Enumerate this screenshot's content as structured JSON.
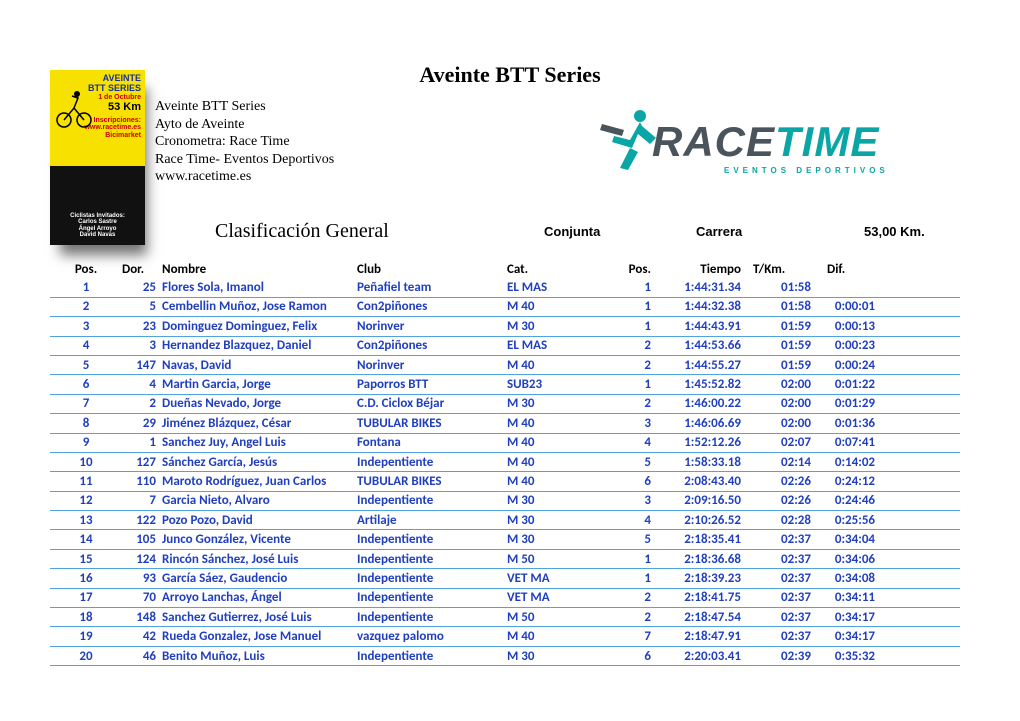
{
  "title": "Aveinte BTT Series",
  "event": {
    "line1": "Aveinte BTT Series",
    "line2": "Ayto de Aveinte",
    "line3": "Cronometra: Race Time",
    "line4": "Race Time- Eventos Deportivos",
    "line5": "www.racetime.es"
  },
  "poster": {
    "l1": "AVEINTE",
    "l2": "BTT SERIES",
    "date": "1 de Octubre",
    "dist": "53 Km",
    "insc": "Inscripciones:",
    "url": "www.racetime.es",
    "shop": "Bicimarket",
    "g1": "Ciclistas Invitados:",
    "g2": "Carlos Sastre",
    "g3": "Ángel Arroyo",
    "g4": "David Navas"
  },
  "logo": {
    "word_a": "RACE",
    "word_b": "TIME",
    "sub": "EVENTOS DEPORTIVOS",
    "color_main": "#4a545c",
    "color_accent": "#0aa6a6"
  },
  "section": {
    "clas": "Clasificación General",
    "conj": "Conjunta",
    "carr": "Carrera",
    "dist": "53,00 Km."
  },
  "columns": {
    "pos": "Pos.",
    "dor": "Dor.",
    "nombre": "Nombre",
    "club": "Club",
    "cat": "Cat.",
    "pos2": "Pos.",
    "tiempo": "Tiempo",
    "tkm": "T/Km.",
    "dif": "Dif."
  },
  "style": {
    "row_color": "#1f3fbf",
    "rule_color": "#4ea3e0",
    "header_color": "#000000",
    "font": "Calibri",
    "font_size": 13
  },
  "rows": [
    {
      "pos": "1",
      "dor": "25",
      "nombre": "Flores Sola, Imanol",
      "club": "Peñafiel team",
      "cat": "EL MAS",
      "pos2": "1",
      "tiempo": "1:44:31.34",
      "tkm": "01:58",
      "dif": ""
    },
    {
      "pos": "2",
      "dor": "5",
      "nombre": "Cembellin Muñoz, Jose Ramon",
      "club": "Con2piñones",
      "cat": "M 40",
      "pos2": "1",
      "tiempo": "1:44:32.38",
      "tkm": "01:58",
      "dif": "0:00:01"
    },
    {
      "pos": "3",
      "dor": "23",
      "nombre": "Dominguez Dominguez, Felix",
      "club": "Norinver",
      "cat": "M 30",
      "pos2": "1",
      "tiempo": "1:44:43.91",
      "tkm": "01:59",
      "dif": "0:00:13"
    },
    {
      "pos": "4",
      "dor": "3",
      "nombre": "Hernandez Blazquez, Daniel",
      "club": "Con2piñones",
      "cat": "EL MAS",
      "pos2": "2",
      "tiempo": "1:44:53.66",
      "tkm": "01:59",
      "dif": "0:00:23"
    },
    {
      "pos": "5",
      "dor": "147",
      "nombre": "Navas, David",
      "club": "Norinver",
      "cat": "M 40",
      "pos2": "2",
      "tiempo": "1:44:55.27",
      "tkm": "01:59",
      "dif": "0:00:24"
    },
    {
      "pos": "6",
      "dor": "4",
      "nombre": "Martin Garcia, Jorge",
      "club": "Paporros BTT",
      "cat": "SUB23",
      "pos2": "1",
      "tiempo": "1:45:52.82",
      "tkm": "02:00",
      "dif": "0:01:22"
    },
    {
      "pos": "7",
      "dor": "2",
      "nombre": "Dueñas Nevado, Jorge",
      "club": "C.D. Ciclox Béjar",
      "cat": "M 30",
      "pos2": "2",
      "tiempo": "1:46:00.22",
      "tkm": "02:00",
      "dif": "0:01:29"
    },
    {
      "pos": "8",
      "dor": "29",
      "nombre": "Jiménez Blázquez, César",
      "club": "TUBULAR BIKES",
      "cat": "M 40",
      "pos2": "3",
      "tiempo": "1:46:06.69",
      "tkm": "02:00",
      "dif": "0:01:36"
    },
    {
      "pos": "9",
      "dor": "1",
      "nombre": "Sanchez Juy, Angel Luis",
      "club": "Fontana",
      "cat": "M 40",
      "pos2": "4",
      "tiempo": "1:52:12.26",
      "tkm": "02:07",
      "dif": "0:07:41"
    },
    {
      "pos": "10",
      "dor": "127",
      "nombre": "Sánchez García, Jesús",
      "club": "Indepentiente",
      "cat": "M 40",
      "pos2": "5",
      "tiempo": "1:58:33.18",
      "tkm": "02:14",
      "dif": "0:14:02"
    },
    {
      "pos": "11",
      "dor": "110",
      "nombre": "Maroto Rodríguez, Juan Carlos",
      "club": "TUBULAR BIKES",
      "cat": "M 40",
      "pos2": "6",
      "tiempo": "2:08:43.40",
      "tkm": "02:26",
      "dif": "0:24:12"
    },
    {
      "pos": "12",
      "dor": "7",
      "nombre": "Garcia Nieto, Alvaro",
      "club": "Indepentiente",
      "cat": "M 30",
      "pos2": "3",
      "tiempo": "2:09:16.50",
      "tkm": "02:26",
      "dif": "0:24:46"
    },
    {
      "pos": "13",
      "dor": "122",
      "nombre": "Pozo Pozo, David",
      "club": "Artilaje",
      "cat": "M 30",
      "pos2": "4",
      "tiempo": "2:10:26.52",
      "tkm": "02:28",
      "dif": "0:25:56"
    },
    {
      "pos": "14",
      "dor": "105",
      "nombre": "Junco González, Vicente",
      "club": "Indepentiente",
      "cat": "M 30",
      "pos2": "5",
      "tiempo": "2:18:35.41",
      "tkm": "02:37",
      "dif": "0:34:04"
    },
    {
      "pos": "15",
      "dor": "124",
      "nombre": "Rincón Sánchez, José Luis",
      "club": "Indepentiente",
      "cat": "M 50",
      "pos2": "1",
      "tiempo": "2:18:36.68",
      "tkm": "02:37",
      "dif": "0:34:06"
    },
    {
      "pos": "16",
      "dor": "93",
      "nombre": "García Sáez, Gaudencio",
      "club": "Indepentiente",
      "cat": "VET MA",
      "pos2": "1",
      "tiempo": "2:18:39.23",
      "tkm": "02:37",
      "dif": "0:34:08"
    },
    {
      "pos": "17",
      "dor": "70",
      "nombre": "Arroyo Lanchas, Ángel",
      "club": "Indepentiente",
      "cat": "VET MA",
      "pos2": "2",
      "tiempo": "2:18:41.75",
      "tkm": "02:37",
      "dif": "0:34:11"
    },
    {
      "pos": "18",
      "dor": "148",
      "nombre": "Sanchez Gutierrez, José Luis",
      "club": "Indepentiente",
      "cat": "M 50",
      "pos2": "2",
      "tiempo": "2:18:47.54",
      "tkm": "02:37",
      "dif": "0:34:17"
    },
    {
      "pos": "19",
      "dor": "42",
      "nombre": "Rueda Gonzalez, Jose Manuel",
      "club": "vazquez palomo",
      "cat": "M 40",
      "pos2": "7",
      "tiempo": "2:18:47.91",
      "tkm": "02:37",
      "dif": "0:34:17"
    },
    {
      "pos": "20",
      "dor": "46",
      "nombre": "Benito Muñoz, Luis",
      "club": "Indepentiente",
      "cat": "M 30",
      "pos2": "6",
      "tiempo": "2:20:03.41",
      "tkm": "02:39",
      "dif": "0:35:32"
    }
  ]
}
